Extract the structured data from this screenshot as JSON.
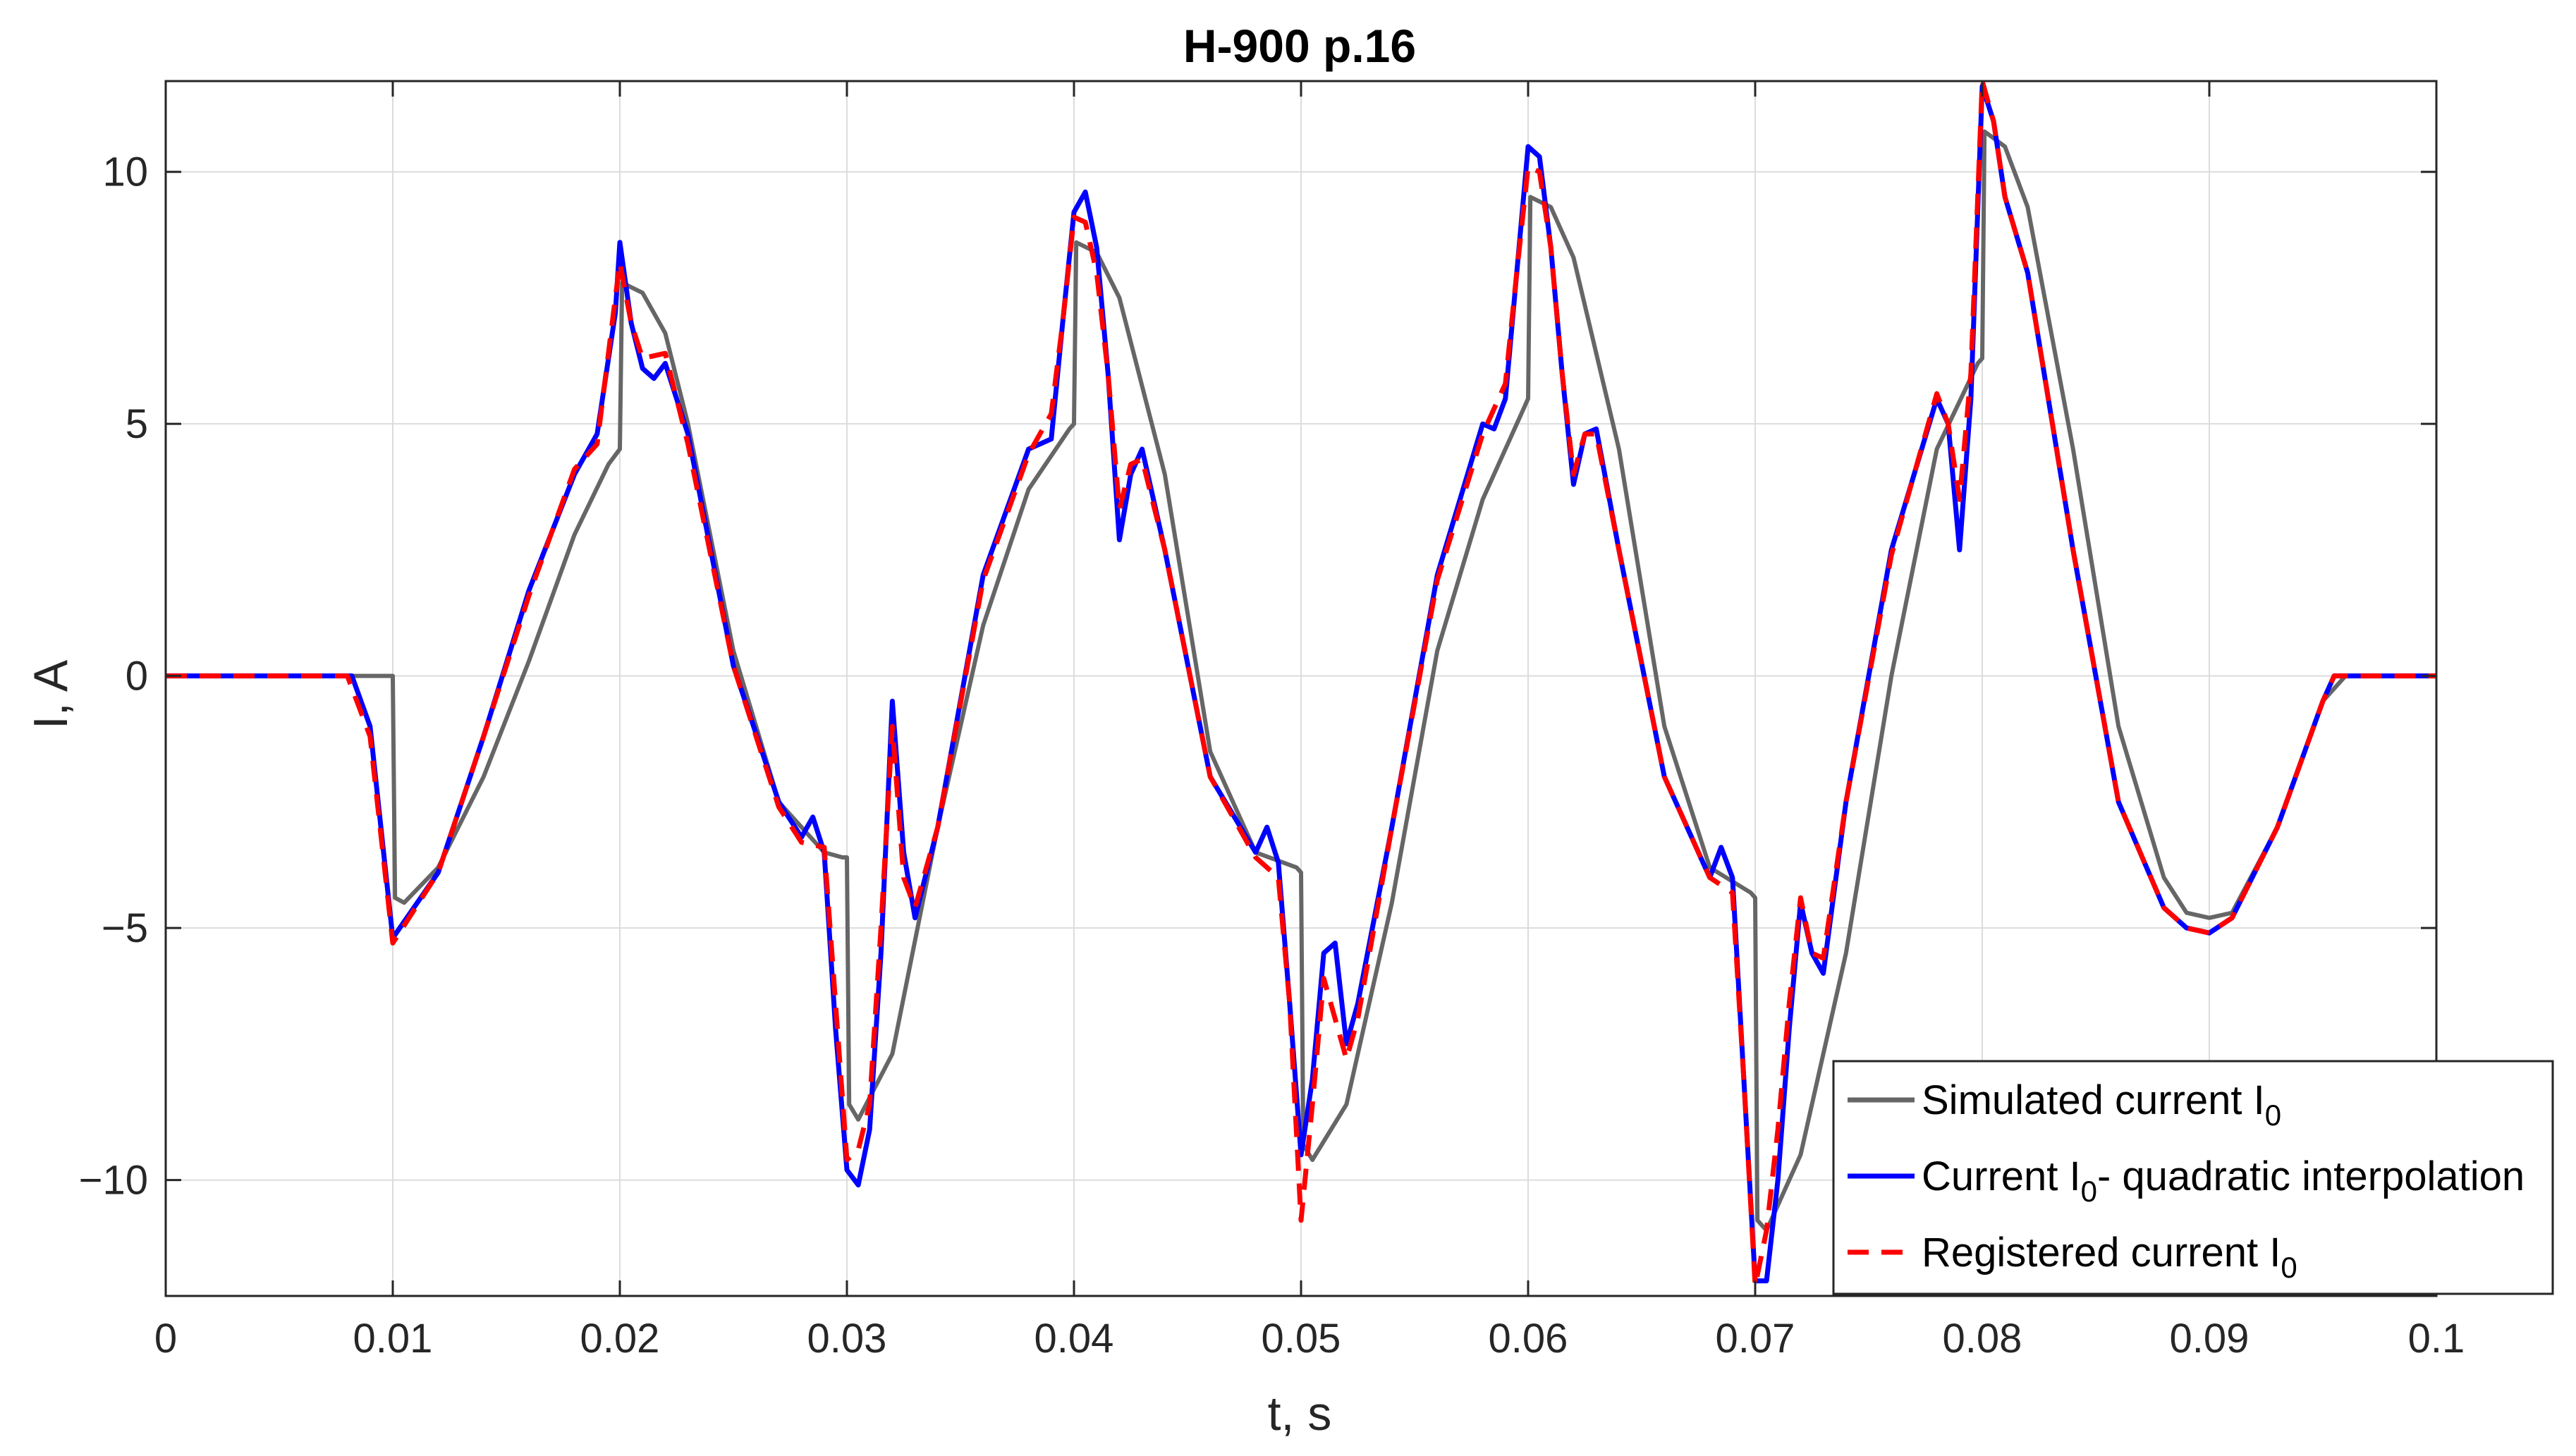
{
  "chart_data": {
    "type": "line",
    "title": "H-900 p.16",
    "xlabel": "t, s",
    "ylabel": "I, A",
    "xlim": [
      0,
      0.1
    ],
    "ylim": [
      -12.3,
      11.8
    ],
    "xticks": [
      0,
      0.01,
      0.02,
      0.03,
      0.04,
      0.05,
      0.06,
      0.07,
      0.08,
      0.09,
      0.1
    ],
    "xtick_labels": [
      "0",
      "0.01",
      "0.02",
      "0.03",
      "0.04",
      "0.05",
      "0.06",
      "0.07",
      "0.08",
      "0.09",
      "0.1"
    ],
    "yticks": [
      -10,
      -5,
      0,
      5,
      10
    ],
    "ytick_labels": [
      "−10",
      "−5",
      "0",
      "5",
      "10"
    ],
    "grid": true,
    "legend_position": "bottom-right",
    "series": [
      {
        "name": "Simulated current I0",
        "legend_main": "Simulated current I",
        "legend_sub": "0",
        "legend_tail": "",
        "color": "#666666",
        "style": "solid",
        "points": [
          [
            0,
            0
          ],
          [
            0.01,
            0
          ],
          [
            0.0101,
            -4.4
          ],
          [
            0.0105,
            -4.5
          ],
          [
            0.012,
            -3.8
          ],
          [
            0.014,
            -2.0
          ],
          [
            0.016,
            0.3
          ],
          [
            0.018,
            2.8
          ],
          [
            0.0195,
            4.2
          ],
          [
            0.02,
            4.5
          ],
          [
            0.0201,
            7.8
          ],
          [
            0.021,
            7.6
          ],
          [
            0.022,
            6.8
          ],
          [
            0.023,
            5.0
          ],
          [
            0.025,
            0.5
          ],
          [
            0.027,
            -2.5
          ],
          [
            0.029,
            -3.5
          ],
          [
            0.0298,
            -3.6
          ],
          [
            0.03,
            -3.6
          ],
          [
            0.0301,
            -8.5
          ],
          [
            0.0305,
            -8.8
          ],
          [
            0.032,
            -7.5
          ],
          [
            0.034,
            -3.0
          ],
          [
            0.036,
            1.0
          ],
          [
            0.038,
            3.7
          ],
          [
            0.0398,
            4.9
          ],
          [
            0.04,
            5.0
          ],
          [
            0.0401,
            8.6
          ],
          [
            0.041,
            8.4
          ],
          [
            0.042,
            7.5
          ],
          [
            0.044,
            4.0
          ],
          [
            0.046,
            -1.5
          ],
          [
            0.048,
            -3.5
          ],
          [
            0.0498,
            -3.8
          ],
          [
            0.05,
            -3.9
          ],
          [
            0.0501,
            -9.3
          ],
          [
            0.0505,
            -9.6
          ],
          [
            0.052,
            -8.5
          ],
          [
            0.054,
            -4.5
          ],
          [
            0.056,
            0.5
          ],
          [
            0.058,
            3.5
          ],
          [
            0.0598,
            5.3
          ],
          [
            0.06,
            5.5
          ],
          [
            0.0601,
            9.5
          ],
          [
            0.061,
            9.3
          ],
          [
            0.062,
            8.3
          ],
          [
            0.064,
            4.5
          ],
          [
            0.066,
            -1.0
          ],
          [
            0.068,
            -3.8
          ],
          [
            0.0698,
            -4.3
          ],
          [
            0.07,
            -4.4
          ],
          [
            0.0701,
            -10.8
          ],
          [
            0.0705,
            -11.0
          ],
          [
            0.072,
            -9.5
          ],
          [
            0.074,
            -5.5
          ],
          [
            0.076,
            0
          ],
          [
            0.078,
            4.5
          ],
          [
            0.0798,
            6.2
          ],
          [
            0.08,
            6.3
          ],
          [
            0.0801,
            10.8
          ],
          [
            0.081,
            10.5
          ],
          [
            0.082,
            9.3
          ],
          [
            0.084,
            4.5
          ],
          [
            0.086,
            -1.0
          ],
          [
            0.088,
            -4.0
          ],
          [
            0.089,
            -4.7
          ],
          [
            0.09,
            -4.8
          ],
          [
            0.091,
            -4.7
          ],
          [
            0.093,
            -3.0
          ],
          [
            0.095,
            -0.5
          ],
          [
            0.096,
            0
          ],
          [
            0.1,
            0
          ]
        ]
      },
      {
        "name": "Current I0- quadratic interpolation",
        "legend_main": "Current  I",
        "legend_sub": "0",
        "legend_tail": "- quadratic interpolation",
        "color": "#0000ff",
        "style": "solid",
        "points": [
          [
            0,
            0
          ],
          [
            0.0082,
            0
          ],
          [
            0.009,
            -1.0
          ],
          [
            0.01,
            -5.2
          ],
          [
            0.012,
            -3.9
          ],
          [
            0.014,
            -1.2
          ],
          [
            0.016,
            1.7
          ],
          [
            0.018,
            4.0
          ],
          [
            0.019,
            4.8
          ],
          [
            0.0198,
            7.2
          ],
          [
            0.02,
            8.6
          ],
          [
            0.0205,
            7.0
          ],
          [
            0.021,
            6.1
          ],
          [
            0.0215,
            5.9
          ],
          [
            0.022,
            6.2
          ],
          [
            0.023,
            4.8
          ],
          [
            0.025,
            0.2
          ],
          [
            0.027,
            -2.5
          ],
          [
            0.028,
            -3.2
          ],
          [
            0.0285,
            -2.8
          ],
          [
            0.029,
            -3.5
          ],
          [
            0.0295,
            -7.0
          ],
          [
            0.03,
            -9.8
          ],
          [
            0.0305,
            -10.1
          ],
          [
            0.031,
            -9.0
          ],
          [
            0.0315,
            -5.5
          ],
          [
            0.032,
            -0.5
          ],
          [
            0.0325,
            -3.5
          ],
          [
            0.033,
            -4.8
          ],
          [
            0.034,
            -3.0
          ],
          [
            0.036,
            2.0
          ],
          [
            0.038,
            4.5
          ],
          [
            0.039,
            4.7
          ],
          [
            0.0395,
            7.0
          ],
          [
            0.04,
            9.2
          ],
          [
            0.0405,
            9.6
          ],
          [
            0.041,
            8.5
          ],
          [
            0.0415,
            6.0
          ],
          [
            0.042,
            2.7
          ],
          [
            0.0425,
            4.0
          ],
          [
            0.043,
            4.5
          ],
          [
            0.044,
            2.5
          ],
          [
            0.046,
            -2.0
          ],
          [
            0.048,
            -3.5
          ],
          [
            0.0485,
            -3.0
          ],
          [
            0.049,
            -3.7
          ],
          [
            0.0495,
            -6.5
          ],
          [
            0.05,
            -9.5
          ],
          [
            0.0505,
            -8.0
          ],
          [
            0.051,
            -5.5
          ],
          [
            0.0515,
            -5.3
          ],
          [
            0.052,
            -7.3
          ],
          [
            0.0525,
            -6.5
          ],
          [
            0.054,
            -3.0
          ],
          [
            0.056,
            2.0
          ],
          [
            0.058,
            5.0
          ],
          [
            0.0585,
            4.9
          ],
          [
            0.059,
            5.5
          ],
          [
            0.0595,
            8.0
          ],
          [
            0.06,
            10.5
          ],
          [
            0.0605,
            10.3
          ],
          [
            0.061,
            8.5
          ],
          [
            0.0615,
            6.0
          ],
          [
            0.062,
            3.8
          ],
          [
            0.0625,
            4.8
          ],
          [
            0.063,
            4.9
          ],
          [
            0.064,
            2.5
          ],
          [
            0.066,
            -2.0
          ],
          [
            0.068,
            -4.0
          ],
          [
            0.0685,
            -3.4
          ],
          [
            0.069,
            -4.0
          ],
          [
            0.0695,
            -8.0
          ],
          [
            0.07,
            -12.0
          ],
          [
            0.0705,
            -12.0
          ],
          [
            0.071,
            -10.0
          ],
          [
            0.0715,
            -7.0
          ],
          [
            0.072,
            -4.5
          ],
          [
            0.0725,
            -5.5
          ],
          [
            0.073,
            -5.9
          ],
          [
            0.074,
            -2.5
          ],
          [
            0.076,
            2.5
          ],
          [
            0.078,
            5.5
          ],
          [
            0.0785,
            5.0
          ],
          [
            0.079,
            2.5
          ],
          [
            0.0795,
            5.5
          ],
          [
            0.08,
            11.7
          ],
          [
            0.0805,
            11.0
          ],
          [
            0.081,
            9.5
          ],
          [
            0.082,
            8.0
          ],
          [
            0.084,
            2.5
          ],
          [
            0.086,
            -2.5
          ],
          [
            0.088,
            -4.6
          ],
          [
            0.089,
            -5.0
          ],
          [
            0.09,
            -5.1
          ],
          [
            0.091,
            -4.8
          ],
          [
            0.093,
            -3.0
          ],
          [
            0.095,
            -0.5
          ],
          [
            0.0955,
            0
          ],
          [
            0.1,
            0
          ]
        ]
      },
      {
        "name": "Registered current I0",
        "legend_main": "Registered current I",
        "legend_sub": "0",
        "legend_tail": "",
        "color": "#ff0000",
        "style": "dashed",
        "points": [
          [
            0,
            0
          ],
          [
            0.008,
            0
          ],
          [
            0.009,
            -1.2
          ],
          [
            0.01,
            -5.3
          ],
          [
            0.012,
            -3.9
          ],
          [
            0.014,
            -1.2
          ],
          [
            0.016,
            1.6
          ],
          [
            0.018,
            4.1
          ],
          [
            0.019,
            4.6
          ],
          [
            0.0198,
            7.5
          ],
          [
            0.02,
            8.2
          ],
          [
            0.0205,
            7.0
          ],
          [
            0.021,
            6.3
          ],
          [
            0.022,
            6.4
          ],
          [
            0.023,
            4.6
          ],
          [
            0.025,
            0.2
          ],
          [
            0.027,
            -2.6
          ],
          [
            0.028,
            -3.3
          ],
          [
            0.029,
            -3.4
          ],
          [
            0.0295,
            -6.5
          ],
          [
            0.03,
            -9.6
          ],
          [
            0.0305,
            -9.4
          ],
          [
            0.031,
            -8.5
          ],
          [
            0.0315,
            -5.0
          ],
          [
            0.032,
            -1.0
          ],
          [
            0.0325,
            -4.0
          ],
          [
            0.033,
            -4.6
          ],
          [
            0.034,
            -3.0
          ],
          [
            0.036,
            1.9
          ],
          [
            0.038,
            4.4
          ],
          [
            0.039,
            5.2
          ],
          [
            0.0395,
            7.0
          ],
          [
            0.04,
            9.1
          ],
          [
            0.0405,
            9.0
          ],
          [
            0.041,
            8.0
          ],
          [
            0.0415,
            6.0
          ],
          [
            0.042,
            3.3
          ],
          [
            0.0425,
            4.2
          ],
          [
            0.043,
            4.3
          ],
          [
            0.044,
            2.5
          ],
          [
            0.046,
            -2.0
          ],
          [
            0.048,
            -3.6
          ],
          [
            0.049,
            -4.0
          ],
          [
            0.0495,
            -6.5
          ],
          [
            0.05,
            -10.8
          ],
          [
            0.0505,
            -8.5
          ],
          [
            0.051,
            -6.0
          ],
          [
            0.052,
            -7.6
          ],
          [
            0.0525,
            -6.8
          ],
          [
            0.054,
            -3.0
          ],
          [
            0.056,
            1.9
          ],
          [
            0.058,
            4.8
          ],
          [
            0.059,
            5.8
          ],
          [
            0.0595,
            8.0
          ],
          [
            0.06,
            10.1
          ],
          [
            0.0605,
            10.0
          ],
          [
            0.061,
            8.5
          ],
          [
            0.0615,
            6.0
          ],
          [
            0.062,
            4.0
          ],
          [
            0.0625,
            4.8
          ],
          [
            0.063,
            4.8
          ],
          [
            0.064,
            2.5
          ],
          [
            0.066,
            -2.0
          ],
          [
            0.068,
            -4.0
          ],
          [
            0.069,
            -4.3
          ],
          [
            0.0695,
            -8.0
          ],
          [
            0.07,
            -12.1
          ],
          [
            0.0705,
            -11.0
          ],
          [
            0.071,
            -9.0
          ],
          [
            0.0715,
            -6.5
          ],
          [
            0.072,
            -4.4
          ],
          [
            0.0725,
            -5.5
          ],
          [
            0.073,
            -5.6
          ],
          [
            0.074,
            -2.5
          ],
          [
            0.076,
            2.4
          ],
          [
            0.078,
            5.6
          ],
          [
            0.0785,
            5.0
          ],
          [
            0.079,
            3.5
          ],
          [
            0.0795,
            6.0
          ],
          [
            0.08,
            11.8
          ],
          [
            0.0805,
            11.0
          ],
          [
            0.081,
            9.5
          ],
          [
            0.082,
            8.0
          ],
          [
            0.084,
            2.5
          ],
          [
            0.086,
            -2.5
          ],
          [
            0.088,
            -4.6
          ],
          [
            0.089,
            -5.0
          ],
          [
            0.09,
            -5.1
          ],
          [
            0.091,
            -4.8
          ],
          [
            0.093,
            -3.0
          ],
          [
            0.095,
            -0.5
          ],
          [
            0.0955,
            0
          ],
          [
            0.1,
            0
          ]
        ]
      }
    ]
  }
}
